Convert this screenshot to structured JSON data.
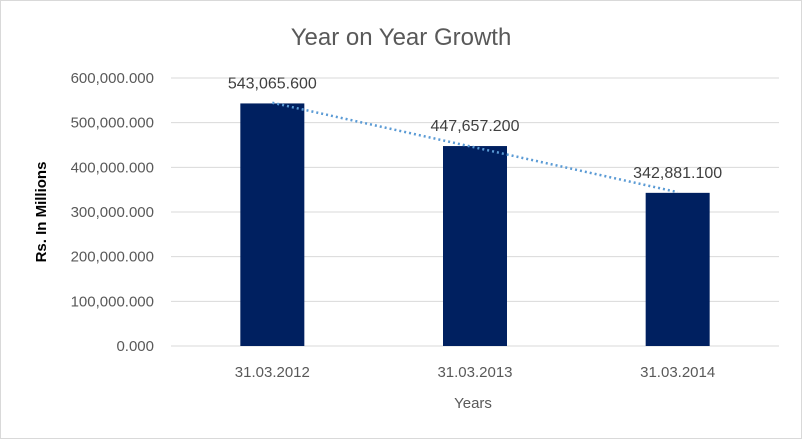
{
  "chart_data": {
    "type": "bar",
    "title": "Year on Year Growth",
    "xlabel": "Years",
    "ylabel": "Rs. In Millions",
    "categories": [
      "31.03.2012",
      "31.03.2013",
      "31.03.2014"
    ],
    "values": [
      543065.6,
      447657.2,
      342881.1
    ],
    "data_labels": [
      "543,065.600",
      "447,657.200",
      "342,881.100"
    ],
    "ylim": [
      0,
      600000
    ],
    "yticks": [
      0,
      100000,
      200000,
      300000,
      400000,
      500000,
      600000
    ],
    "ytick_labels": [
      "0.000",
      "100,000.000",
      "200,000.000",
      "300,000.000",
      "400,000.000",
      "500,000.000",
      "600,000.000"
    ],
    "trendline": "linear",
    "grid": true,
    "legend": "none",
    "colors": {
      "bar": "#002060",
      "trendline": "#5b9bd5"
    }
  }
}
